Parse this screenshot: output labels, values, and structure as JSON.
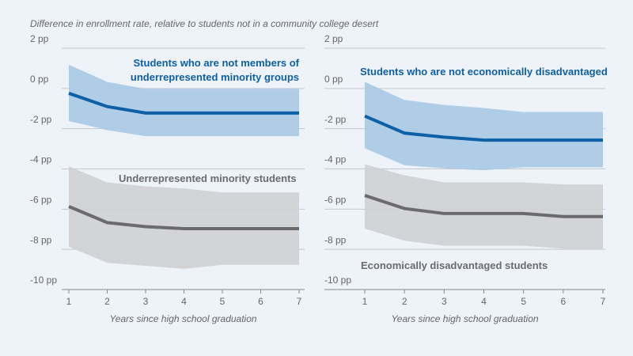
{
  "chart_data": [
    {
      "type": "line",
      "ylabel": "Difference in enrollment rate, relative to students not in a community college desert",
      "xlabel": "Years since high school graduation",
      "x": [
        1,
        2,
        3,
        4,
        5,
        6,
        7
      ],
      "xlim": [
        1,
        7
      ],
      "xticks": [
        1,
        2,
        3,
        4,
        5,
        6,
        7
      ],
      "ylim": [
        -10,
        2
      ],
      "yticks": [
        {
          "value": -10,
          "label": "-10 pp"
        },
        {
          "value": -8,
          "label": "-8 pp"
        },
        {
          "value": -6,
          "label": "-6 pp"
        },
        {
          "value": -4,
          "label": "-4 pp"
        },
        {
          "value": -2,
          "label": "-2 pp"
        },
        {
          "value": 0,
          "label": "0 pp"
        },
        {
          "value": 2,
          "label": "2 pp"
        }
      ],
      "grid": true,
      "series": [
        {
          "name": "Students who are not members of underrepresented minority groups",
          "color": "#0d5fa6",
          "band_color": "#a9c9e6",
          "values": [
            -0.24,
            -0.9,
            -1.22,
            -1.22,
            -1.22,
            -1.22,
            -1.22
          ],
          "upper": [
            1.18,
            0.33,
            -0.02,
            -0.02,
            -0.02,
            -0.02,
            -0.02
          ],
          "lower": [
            -1.62,
            -2.07,
            -2.37,
            -2.37,
            -2.37,
            -2.37,
            -2.37
          ]
        },
        {
          "name": "Underrepresented minority students",
          "color": "#6b6b6e",
          "band_color": "#cfd0d3",
          "values": [
            -5.87,
            -6.67,
            -6.87,
            -6.97,
            -6.97,
            -6.97,
            -6.97
          ],
          "upper": [
            -3.87,
            -4.67,
            -4.87,
            -4.97,
            -5.17,
            -5.17,
            -5.17
          ],
          "lower": [
            -7.87,
            -8.67,
            -8.82,
            -8.97,
            -8.77,
            -8.77,
            -8.77
          ]
        }
      ]
    },
    {
      "type": "line",
      "xlabel": "Years since high school graduation",
      "x": [
        1,
        2,
        3,
        4,
        5,
        6,
        7
      ],
      "xlim": [
        1,
        7
      ],
      "xticks": [
        1,
        2,
        3,
        4,
        5,
        6,
        7
      ],
      "ylim": [
        -10,
        2
      ],
      "yticks": [
        {
          "value": -10,
          "label": "-10 pp"
        },
        {
          "value": -8,
          "label": "-8 pp"
        },
        {
          "value": -6,
          "label": "-6 pp"
        },
        {
          "value": -4,
          "label": "-4 pp"
        },
        {
          "value": -2,
          "label": "-2 pp"
        },
        {
          "value": 0,
          "label": "0 pp"
        },
        {
          "value": 2,
          "label": "2 pp"
        }
      ],
      "grid": true,
      "series": [
        {
          "name": "Students who are not economically disadvantaged",
          "color": "#0d5fa6",
          "band_color": "#a9c9e6",
          "values": [
            -1.37,
            -2.22,
            -2.42,
            -2.57,
            -2.57,
            -2.57,
            -2.57
          ],
          "upper": [
            0.33,
            -0.57,
            -0.82,
            -0.97,
            -1.17,
            -1.17,
            -1.17
          ],
          "lower": [
            -2.97,
            -3.82,
            -3.97,
            -4.07,
            -3.92,
            -3.92,
            -3.92
          ]
        },
        {
          "name": "Economically disadvantaged students",
          "color": "#6b6b6e",
          "band_color": "#cfd0d3",
          "values": [
            -5.32,
            -5.97,
            -6.22,
            -6.22,
            -6.22,
            -6.37,
            -6.37
          ],
          "upper": [
            -3.77,
            -4.32,
            -4.67,
            -4.67,
            -4.67,
            -4.77,
            -4.77
          ],
          "lower": [
            -6.97,
            -7.57,
            -7.82,
            -7.82,
            -7.82,
            -7.97,
            -7.97
          ]
        }
      ]
    }
  ]
}
